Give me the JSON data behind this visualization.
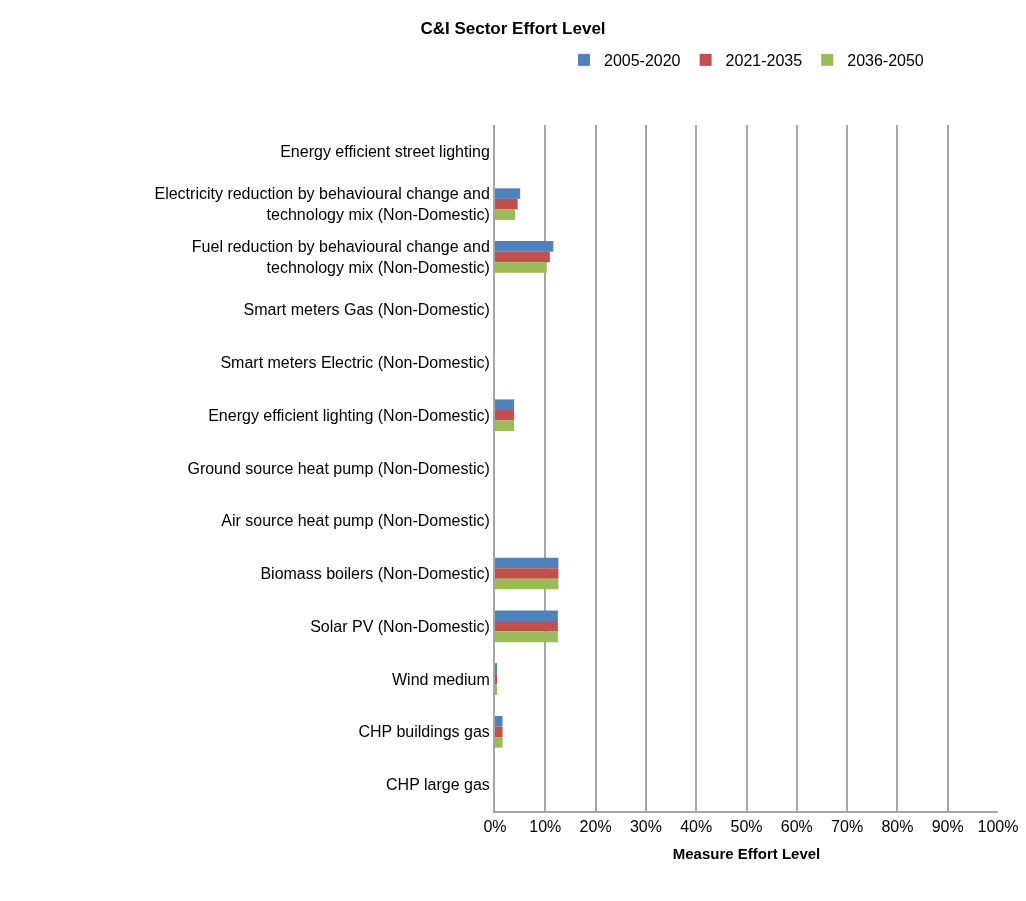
{
  "chart_data": {
    "type": "bar",
    "orientation": "horizontal",
    "title": "C&I Sector Effort Level",
    "xlabel": "Measure Effort Level",
    "categories": [
      "Energy efficient street lighting",
      "Electricity reduction by behavioural change and technology mix (Non-Domestic)",
      "Fuel reduction by behavioural change and technology mix (Non-Domestic)",
      "Smart meters Gas (Non-Domestic)",
      "Smart meters Electric (Non-Domestic)",
      "Energy efficient lighting (Non-Domestic)",
      "Ground source heat pump (Non-Domestic)",
      "Air source heat pump (Non-Domestic)",
      "Biomass boilers (Non-Domestic)",
      "Solar PV (Non-Domestic)",
      "Wind medium",
      "CHP buildings gas",
      "CHP large gas"
    ],
    "series": [
      {
        "name": "2005-2020",
        "color": "#4f81bd",
        "values": [
          0,
          5.0,
          11.6,
          0,
          0,
          3.8,
          0,
          0,
          12.6,
          12.5,
          0.4,
          1.5,
          0
        ]
      },
      {
        "name": "2021-2035",
        "color": "#c0504d",
        "values": [
          0,
          4.5,
          10.9,
          0,
          0,
          3.8,
          0,
          0,
          12.6,
          12.5,
          0.3,
          1.5,
          0
        ]
      },
      {
        "name": "2036-2050",
        "color": "#9bbb59",
        "values": [
          0,
          4.0,
          10.3,
          0,
          0,
          3.8,
          0,
          0,
          12.6,
          12.5,
          0.3,
          1.5,
          0
        ]
      }
    ],
    "xlim": [
      0,
      100
    ],
    "xticks": [
      {
        "value": 0,
        "label": "0%"
      },
      {
        "value": 10,
        "label": "10%"
      },
      {
        "value": 20,
        "label": "20%"
      },
      {
        "value": 30,
        "label": "30%"
      },
      {
        "value": 40,
        "label": "40%"
      },
      {
        "value": 50,
        "label": "50%"
      },
      {
        "value": 60,
        "label": "60%"
      },
      {
        "value": 70,
        "label": "70%"
      },
      {
        "value": 80,
        "label": "80%"
      },
      {
        "value": 90,
        "label": "90%"
      },
      {
        "value": 100,
        "label": "100%"
      }
    ],
    "grid": "x",
    "legend": "top"
  }
}
